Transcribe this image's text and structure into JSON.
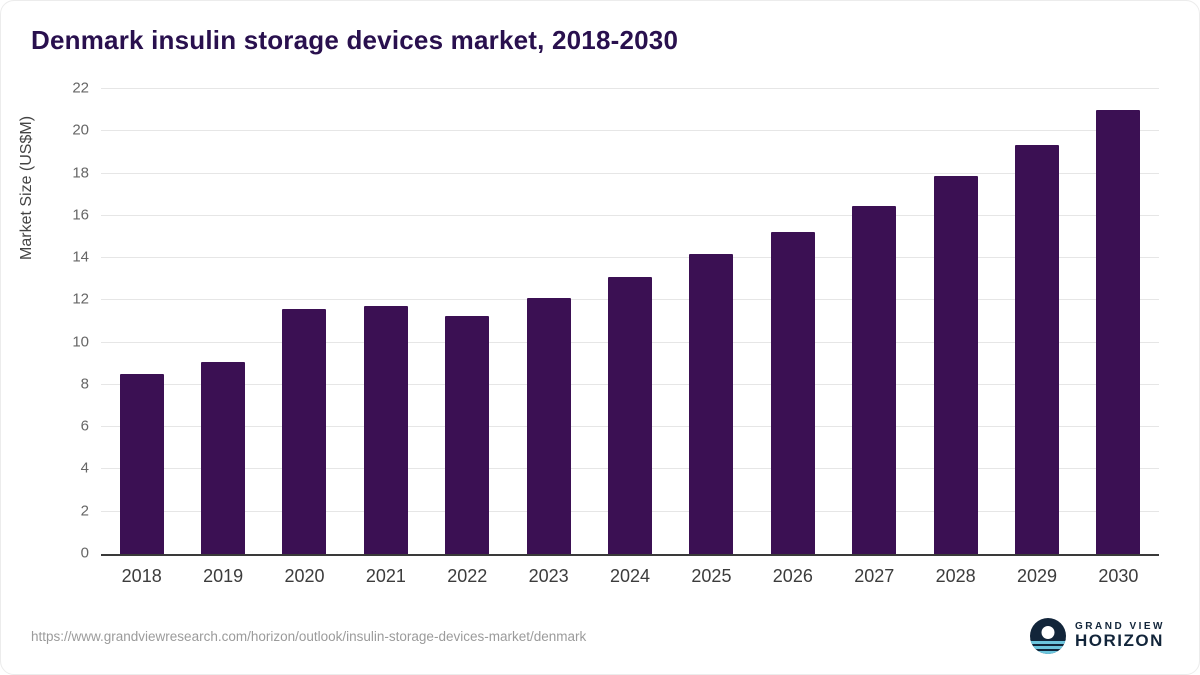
{
  "title": "Denmark insulin storage devices market, 2018-2030",
  "source_url": "https://www.grandviewresearch.com/horizon/outlook/insulin-storage-devices-market/denmark",
  "logo": {
    "top_text": "GRAND VIEW",
    "bottom_text": "HORIZON",
    "icon": "grand-view-horizon-circle-icon"
  },
  "colors": {
    "bar": "#3b1053",
    "title": "#29104e",
    "grid": "#e6e6e6",
    "axis_line": "#3a3a3a",
    "logo_navy": "#12253a",
    "logo_blue": "#6cc5dd"
  },
  "chart_data": {
    "type": "bar",
    "title": "Denmark insulin storage devices market, 2018-2030",
    "xlabel": "",
    "ylabel": "Market Size (US$M)",
    "ylim": [
      0,
      22
    ],
    "ytick_step": 2,
    "grid": true,
    "legend": false,
    "categories": [
      "2018",
      "2019",
      "2020",
      "2021",
      "2022",
      "2023",
      "2024",
      "2025",
      "2026",
      "2027",
      "2028",
      "2029",
      "2030"
    ],
    "values": [
      8.5,
      9.1,
      11.6,
      11.75,
      11.25,
      12.1,
      13.1,
      14.2,
      15.25,
      16.45,
      17.9,
      19.35,
      21.0
    ]
  }
}
